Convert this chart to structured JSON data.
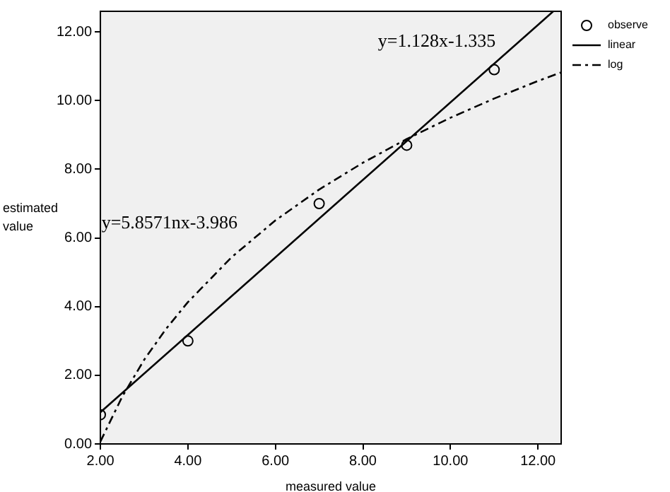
{
  "chart_data": {
    "type": "scatter",
    "xlabel": "measured value",
    "ylabel": "estimated value",
    "legend": "top right",
    "grid": false,
    "xlim": [
      2,
      12.53
    ],
    "ylim": [
      0,
      12.6
    ],
    "xticks": [
      {
        "value": 2,
        "label": "2.00"
      },
      {
        "value": 4,
        "label": "4.00"
      },
      {
        "value": 6,
        "label": "6.00"
      },
      {
        "value": 8,
        "label": "8.00"
      },
      {
        "value": 10,
        "label": "10.00"
      },
      {
        "value": 12,
        "label": "12.00"
      }
    ],
    "yticks": [
      {
        "value": 0,
        "label": "0.00"
      },
      {
        "value": 2,
        "label": "2.00"
      },
      {
        "value": 4,
        "label": "4.00"
      },
      {
        "value": 6,
        "label": "6.00"
      },
      {
        "value": 8,
        "label": "8.00"
      },
      {
        "value": 10,
        "label": "10.00"
      },
      {
        "value": 12,
        "label": "12.00"
      }
    ],
    "annotations": [
      "y=1.128x-1.335",
      "y=5.8571nx-3.986"
    ],
    "series": [
      {
        "name": "observe",
        "type": "scatter",
        "marker": "circle",
        "color": "#000000",
        "x": [
          2,
          4,
          7,
          9,
          11
        ],
        "values": [
          0.85,
          3.0,
          7.0,
          8.7,
          10.9
        ]
      },
      {
        "name": "linear",
        "type": "line",
        "line_style": "solid",
        "color": "#000000",
        "x": [
          2,
          12.35
        ],
        "values": [
          0.92,
          12.6
        ]
      },
      {
        "name": "log",
        "type": "line",
        "line_style": "dashed",
        "color": "#000000",
        "x": [
          2,
          2.5,
          3,
          3.5,
          4,
          5,
          6,
          7,
          8,
          9,
          10,
          11,
          12,
          12.53
        ],
        "values": [
          0.07,
          1.38,
          2.45,
          3.35,
          4.13,
          5.44,
          6.51,
          7.41,
          8.19,
          8.88,
          9.5,
          10.06,
          10.57,
          10.82
        ]
      }
    ]
  }
}
